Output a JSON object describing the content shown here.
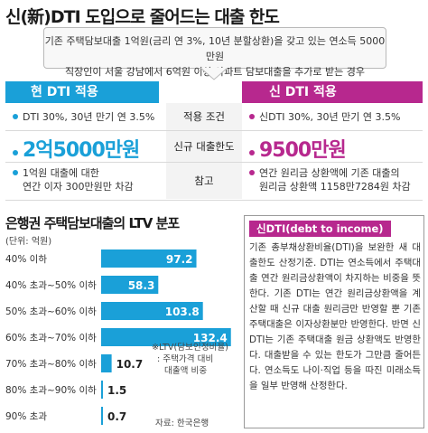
{
  "title": "신(新)DTI 도입으로 줄어드는 대출 한도",
  "premise": {
    "line1": "기존 주택담보대출 1억원(금리 연 3%, 10년 분할상환)을 갖고 있는 연소득 5000만원",
    "line2": "직장인이 서울 강남에서 6억원 이상 아파트 담보대출을 추가로 받는 경우"
  },
  "comparison": {
    "current_header": "현 DTI 적용",
    "new_header": "신 DTI 적용",
    "rows": [
      {
        "label": "적용 조건",
        "current": "DTI 30%, 30년 만기 연 3.5%",
        "new": "신DTI 30%, 30년 만기 연 3.5%"
      },
      {
        "label": "신규 대출한도",
        "current": "2억5000만원",
        "new": "9500만원"
      },
      {
        "label": "참고",
        "current_lines": [
          "1억원 대출에 대한",
          "연간 이자 300만원만 차감"
        ],
        "new_lines": [
          "연간 원리금 상환액에 기존 대출의",
          "원리금 상환액 1158만7284원 차감"
        ]
      }
    ]
  },
  "colors": {
    "current": "#1aa0d8",
    "new": "#b7288e",
    "bar": "#1aa0d8"
  },
  "chart_data": {
    "type": "bar",
    "orientation": "horizontal",
    "title": "은행권 주택담보대출의 LTV 분포",
    "unit": "(단위: 억원)",
    "categories": [
      "40% 이하",
      "40% 초과~50% 이하",
      "50% 초과~60% 이하",
      "60% 초과~70% 이하",
      "70% 초과~80% 이하",
      "80% 초과~90% 이하",
      "90% 초과"
    ],
    "values": [
      97.2,
      58.3,
      103.8,
      132.4,
      10.7,
      1.5,
      0.7
    ],
    "value_labels": [
      "97.2",
      "58.3",
      "103.8",
      "132.4",
      "10.7",
      "1.5",
      "0.7"
    ],
    "xlim": [
      0,
      140
    ]
  },
  "footnote": {
    "lines": [
      "※LTV(담보인정비율)",
      ": 주택가격 대비",
      "대출액 비중"
    ]
  },
  "source": "자료: 한국은행",
  "note": {
    "title": "신DTI(debt to income)",
    "body": "기존 총부채상환비율(DTI)을 보완한 새 대출한도 산정기준. DTI는 연소득에서 주택대출 연간 원리금상환액이 차지하는 비중을 뜻한다. 기존 DTI는 연간 원리금상환액을 계산할 때 신규 대출 원리금만 반영할 뿐 기존 주택대출은 이자상환분만 반영한다. 반면 신DTI는 기존 주택대출 원금 상환액도 반영한다. 대출받을 수 있는 한도가 그만큼 줄어든다. 연소득도 나이·직업 등을 따진 미래소득을 일부 반영해 산정한다."
  }
}
